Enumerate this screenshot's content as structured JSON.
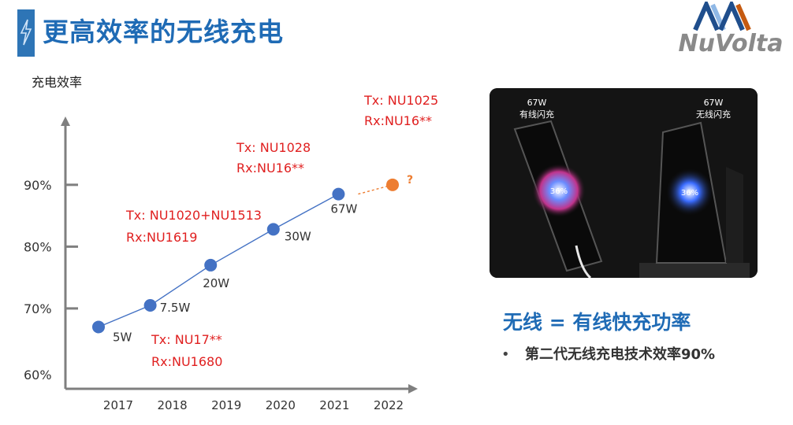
{
  "header": {
    "title": "更高效率的无线充电"
  },
  "logo": {
    "text": "NuVolta"
  },
  "chart_data": {
    "type": "line",
    "ylabel": "充电效率",
    "ytick_labels": [
      "60%",
      "70%",
      "80%",
      "90%"
    ],
    "yticks": [
      60,
      70,
      80,
      90
    ],
    "ylim": [
      57,
      98
    ],
    "categories": [
      "2017",
      "2018",
      "2019",
      "2020",
      "2021",
      "2022"
    ],
    "series": [
      {
        "values": [
          67,
          70.5,
          77,
          82.8,
          88.5,
          null
        ],
        "color": "#4472c4"
      },
      {
        "values": [
          null,
          null,
          null,
          null,
          88.5,
          90
        ],
        "color": "#ed7d31",
        "dashed": true
      }
    ],
    "power_labels": [
      "5W",
      "7.5W",
      "20W",
      "30W",
      "67W"
    ],
    "future_label": "?",
    "chip_labels": [
      {
        "lines": [
          "Tx: NU17**",
          "Rx:NU1680"
        ]
      },
      {
        "lines": [
          "Tx: NU1020+NU1513",
          "Rx:NU1619"
        ]
      },
      {
        "lines": [
          "Tx: NU1028",
          "Rx:NU16**"
        ]
      },
      {
        "lines": [
          "Tx: NU1025",
          "Rx:NU16**"
        ]
      }
    ],
    "grid": false
  },
  "photo": {
    "left_caption": [
      "67W",
      "有线闪充"
    ],
    "right_caption": [
      "67W",
      "无线闪充"
    ],
    "left_screen": "36%",
    "right_screen": "36%"
  },
  "summary": {
    "heading": "无线 = 有线快充功率",
    "bullet": "第二代无线充电技术效率90%",
    "bullet_symbol": "•"
  },
  "colors": {
    "brand_blue": "#1f6bb5",
    "chip_red": "#e02020",
    "orange": "#ed7d31",
    "point_blue": "#4472c4"
  }
}
